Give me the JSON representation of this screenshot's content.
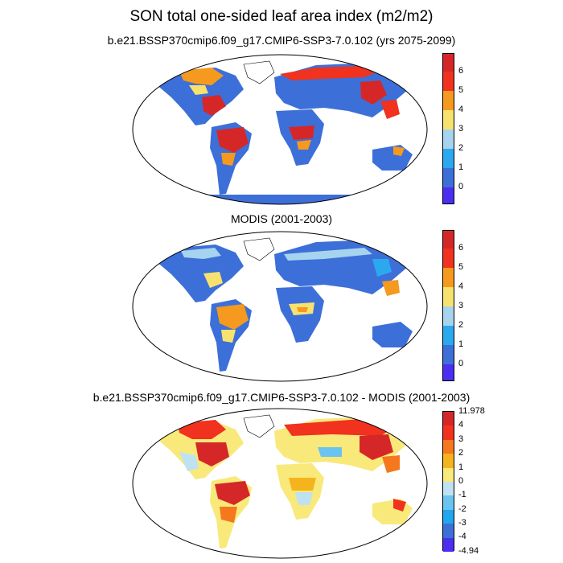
{
  "title": "SON total one-sided leaf area index (m2/m2)",
  "panels": [
    {
      "title": "b.e21.BSSP370cmip6.f09_g17.CMIP6-SSP3-7.0.102 (yrs 2075-2099)"
    },
    {
      "title": "MODIS (2001-2003)"
    },
    {
      "title": "b.e21.BSSP370cmip6.f09_g17.CMIP6-SSP3-7.0.102 - MODIS (2001-2003)"
    }
  ],
  "colorbars": {
    "lai": {
      "labels": [
        "6",
        "5",
        "4",
        "3",
        "2",
        "1",
        "0"
      ],
      "colors": [
        "#d62728",
        "#f0321e",
        "#f59a1e",
        "#f8e26f",
        "#a6d4ee",
        "#2aa9f0",
        "#3d6fd9",
        "#4b2ff0"
      ]
    },
    "diff": {
      "labels": [
        "11.978",
        "4",
        "3",
        "2",
        "1",
        "0",
        "-1",
        "-2",
        "-3",
        "-4",
        "-4.94"
      ],
      "colors": [
        "#d62728",
        "#f0321e",
        "#f5781e",
        "#f5b41e",
        "#f8e97a",
        "#bfe2f2",
        "#6bc3f0",
        "#21a6f0",
        "#3d6fd9",
        "#4b2ff0"
      ]
    }
  }
}
